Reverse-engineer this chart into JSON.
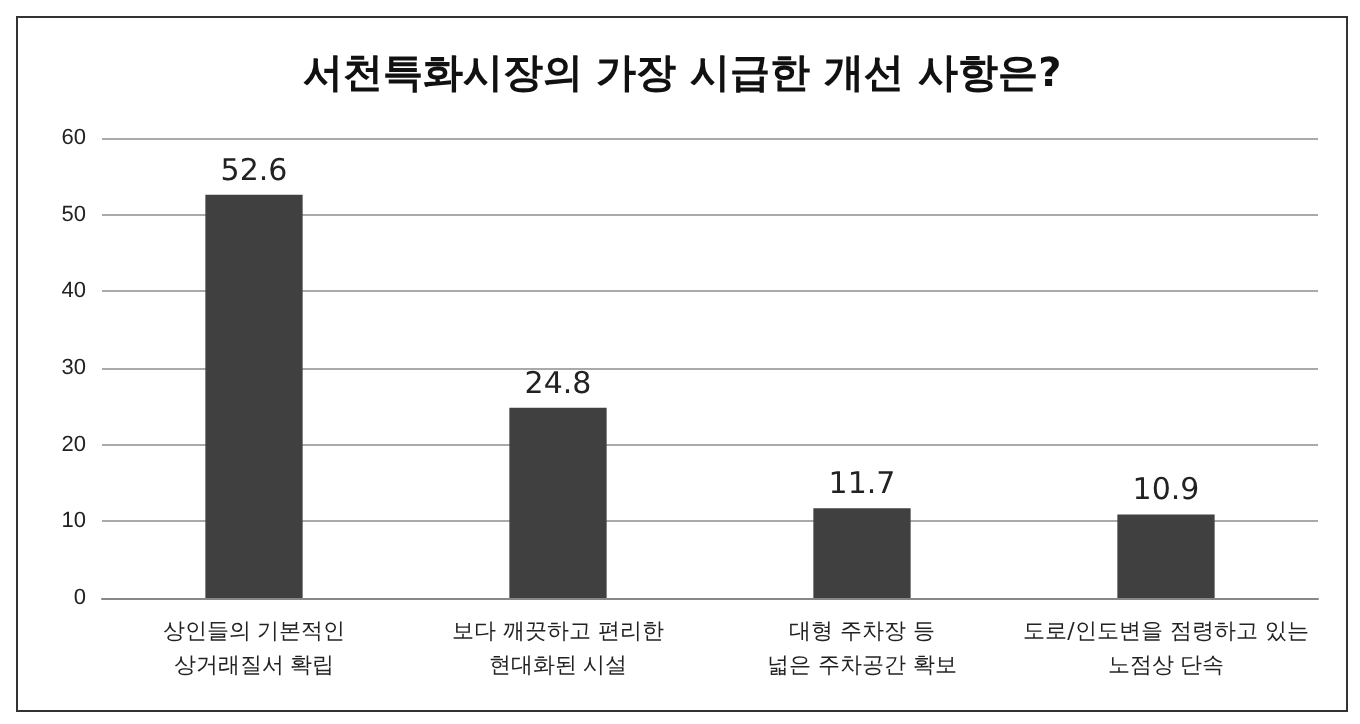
{
  "chart_data": {
    "type": "bar",
    "title": "서천특화시장의 가장 시급한 개선 사항은?",
    "categories": [
      "상인들의 기본적인\n상거래질서 확립",
      "보다 깨끗하고 편리한\n현대화된 시설",
      "대형 주차장 등\n넓은 주차공간 확보",
      "도로/인도변을 점령하고 있는\n노점상 단속"
    ],
    "values": [
      52.6,
      24.8,
      11.7,
      10.9
    ],
    "color": "#404040",
    "ylim": [
      0,
      60
    ],
    "yticks": [
      0,
      10,
      20,
      30,
      40,
      50,
      60
    ],
    "grid": "y",
    "data_labels": true
  }
}
